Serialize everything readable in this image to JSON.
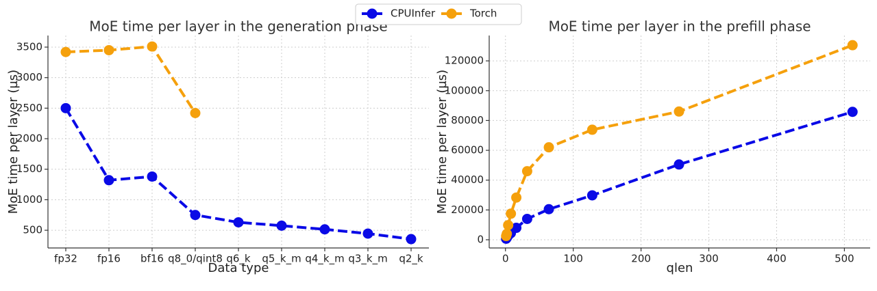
{
  "chart_data": [
    {
      "type": "line",
      "title": "MoE time per layer in the generation phase",
      "x_label": "Data type",
      "y_label": "MoE time per layer (µs)",
      "categories": [
        "fp32",
        "fp16",
        "bf16",
        "q8_0/qint8",
        "q6_k",
        "q5_k_m",
        "q4_k_m",
        "q3_k_m",
        "q2_k"
      ],
      "series": [
        {
          "name": "CPUInfer",
          "color": "#0a0ae6",
          "values": [
            2500,
            1320,
            1380,
            750,
            630,
            575,
            515,
            445,
            355
          ]
        },
        {
          "name": "Torch",
          "color": "#f5a00c",
          "values": [
            3420,
            3450,
            3510,
            2420,
            null,
            null,
            null,
            null,
            null
          ]
        }
      ],
      "ylim": [
        210,
        3690
      ],
      "yticks": [
        500,
        1000,
        1500,
        2000,
        2500,
        3000,
        3500
      ],
      "grid": true,
      "legend": "top-center"
    },
    {
      "type": "line",
      "title": "MoE time per layer in the prefill phase",
      "x_label": "qlen",
      "y_label": "MoE time per layer (µs)",
      "x": [
        1,
        2,
        4,
        8,
        16,
        32,
        64,
        128,
        256,
        512
      ],
      "series": [
        {
          "color": "#0a0ae6",
          "values": [
            700,
            1400,
            2800,
            4500,
            8000,
            14000,
            20500,
            29800,
            50500,
            85800
          ]
        },
        {
          "color": "#f5a00c",
          "values": [
            2500,
            4000,
            9800,
            17500,
            28300,
            46000,
            62000,
            73800,
            86000,
            130500
          ]
        }
      ],
      "xlim": [
        -24,
        538
      ],
      "xticks": [
        0,
        100,
        200,
        300,
        400,
        500
      ],
      "ylim": [
        -5500,
        137000
      ],
      "yticks": [
        0,
        20000,
        40000,
        60000,
        80000,
        100000,
        120000
      ],
      "grid": true
    }
  ]
}
